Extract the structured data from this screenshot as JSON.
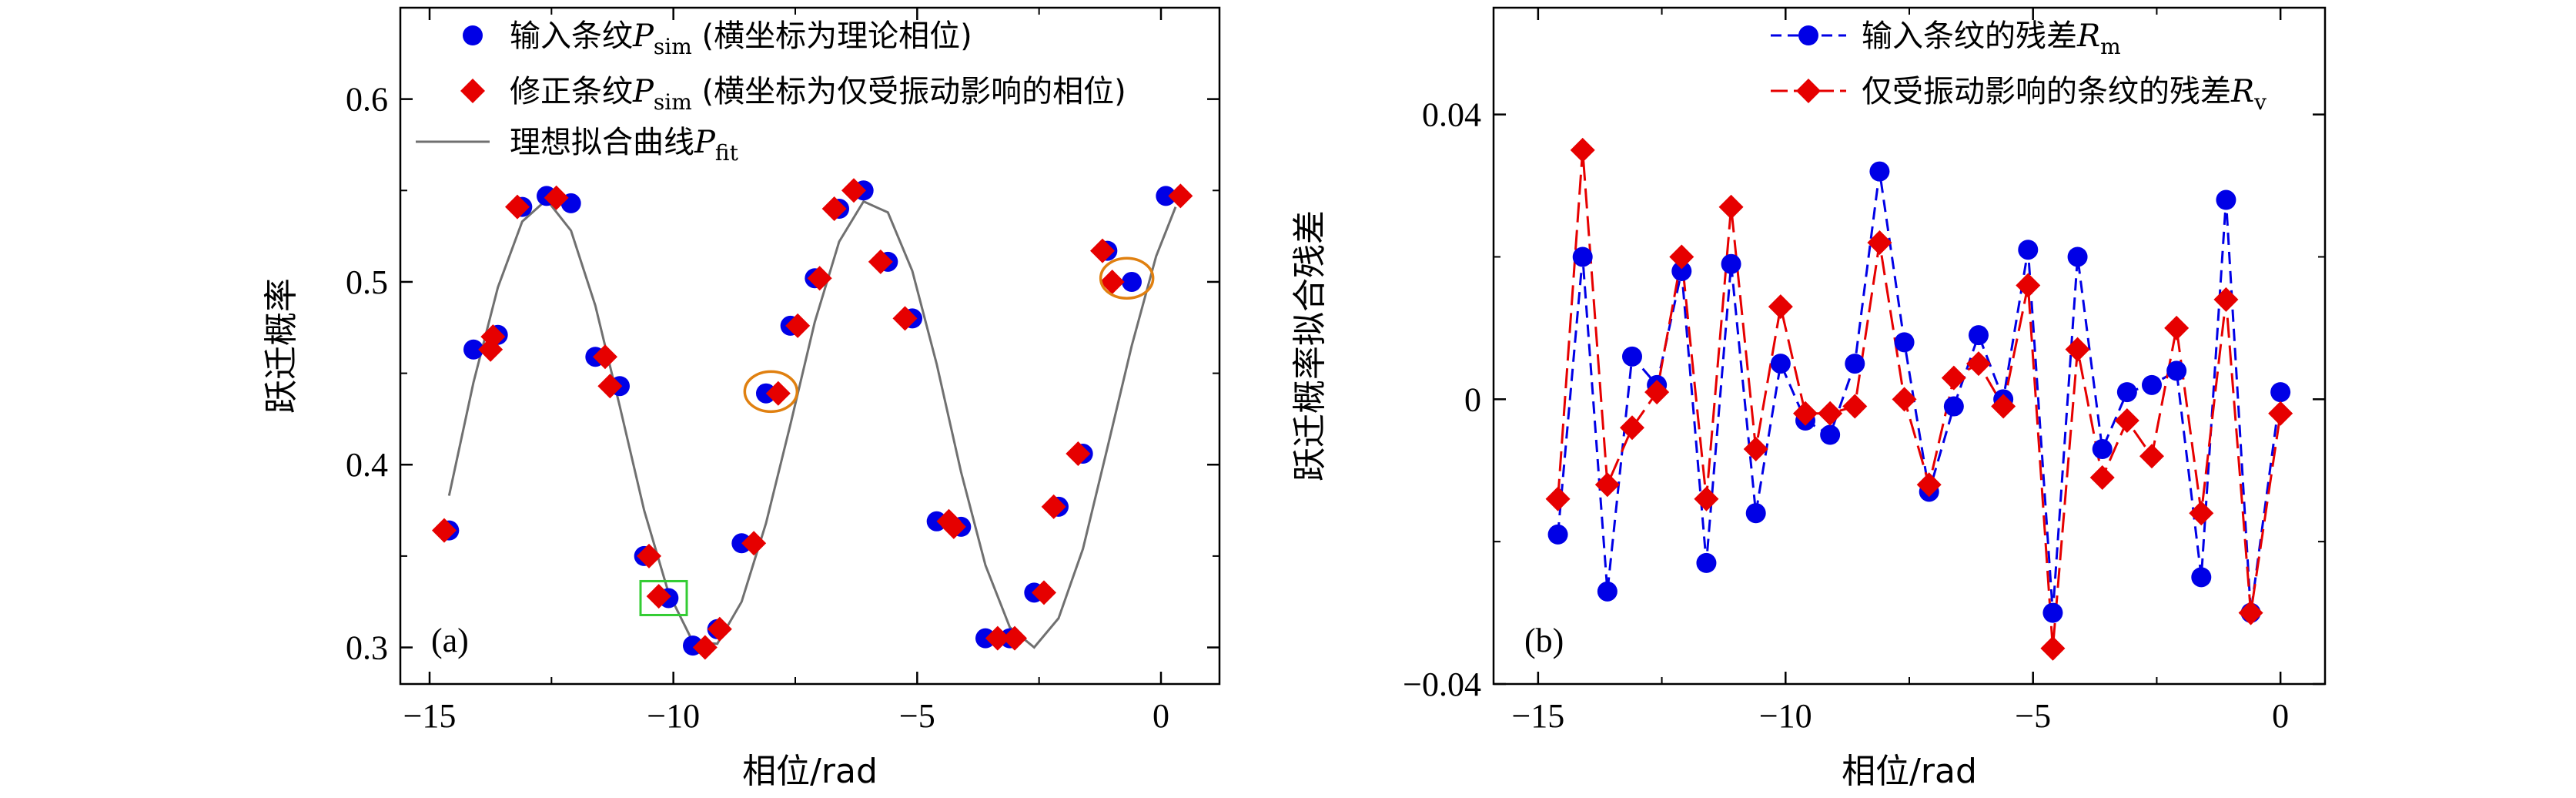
{
  "chart_data": [
    {
      "type": "scatter",
      "panel_label": "(a)",
      "xlabel": "相位/rad",
      "ylabel": "跃迁概率",
      "xlim": [
        -15.6,
        1.2
      ],
      "ylim": [
        0.28,
        0.65
      ],
      "xticks": [
        -15,
        -10,
        -5,
        0
      ],
      "xtick_labels": [
        "−15",
        "−10",
        "−5",
        "0"
      ],
      "yticks": [
        0.3,
        0.4,
        0.5,
        0.6
      ],
      "ytick_labels": [
        "0.3",
        "0.4",
        "0.5",
        "0.6"
      ],
      "grid": false,
      "legend_placement": "top-left",
      "series": [
        {
          "name": "输入条纹P_sim (横坐标为理论相位)",
          "legend_label": {
            "pre": "输入条纹",
            "sym": "P",
            "sub": "sim",
            "post": " (横坐标为理论相位)"
          },
          "marker": "circle",
          "color": "#0000e6",
          "points": [
            [
              -14.6,
              0.364
            ],
            [
              -14.1,
              0.463
            ],
            [
              -13.6,
              0.471
            ],
            [
              -13.1,
              0.541
            ],
            [
              -12.6,
              0.547
            ],
            [
              -12.1,
              0.543
            ],
            [
              -11.6,
              0.459
            ],
            [
              -11.1,
              0.443
            ],
            [
              -10.6,
              0.35
            ],
            [
              -10.1,
              0.327
            ],
            [
              -9.6,
              0.301
            ],
            [
              -9.1,
              0.31
            ],
            [
              -8.6,
              0.357
            ],
            [
              -8.1,
              0.439
            ],
            [
              -7.6,
              0.476
            ],
            [
              -7.1,
              0.502
            ],
            [
              -6.6,
              0.54
            ],
            [
              -6.1,
              0.55
            ],
            [
              -5.6,
              0.511
            ],
            [
              -5.1,
              0.48
            ],
            [
              -4.6,
              0.369
            ],
            [
              -4.1,
              0.366
            ],
            [
              -3.6,
              0.305
            ],
            [
              -3.1,
              0.305
            ],
            [
              -2.6,
              0.33
            ],
            [
              -2.1,
              0.377
            ],
            [
              -1.6,
              0.406
            ],
            [
              -1.1,
              0.517
            ],
            [
              -0.6,
              0.5
            ],
            [
              0.1,
              0.547
            ]
          ]
        },
        {
          "name": "修正条纹P_sim (横坐标为仅受振动影响的相位)",
          "legend_label": {
            "pre": "修正条纹",
            "sym": "P",
            "sub": "sim",
            "post": " (横坐标为仅受振动影响的相位)"
          },
          "marker": "diamond",
          "color": "#e60000",
          "points": [
            [
              -14.7,
              0.364
            ],
            [
              -13.75,
              0.463
            ],
            [
              -13.7,
              0.47
            ],
            [
              -13.2,
              0.541
            ],
            [
              -12.4,
              0.546
            ],
            [
              -11.4,
              0.459
            ],
            [
              -11.3,
              0.443
            ],
            [
              -10.5,
              0.35
            ],
            [
              -10.3,
              0.328
            ],
            [
              -9.35,
              0.3
            ],
            [
              -9.05,
              0.31
            ],
            [
              -8.35,
              0.357
            ],
            [
              -7.85,
              0.439
            ],
            [
              -7.45,
              0.476
            ],
            [
              -7.0,
              0.502
            ],
            [
              -6.7,
              0.54
            ],
            [
              -6.3,
              0.55
            ],
            [
              -5.75,
              0.511
            ],
            [
              -5.25,
              0.48
            ],
            [
              -4.35,
              0.369
            ],
            [
              -4.25,
              0.366
            ],
            [
              -3.35,
              0.305
            ],
            [
              -3.0,
              0.305
            ],
            [
              -2.4,
              0.33
            ],
            [
              -2.2,
              0.377
            ],
            [
              -1.7,
              0.406
            ],
            [
              -1.2,
              0.517
            ],
            [
              -1.0,
              0.5
            ],
            [
              0.4,
              0.547
            ]
          ]
        },
        {
          "name": "理想拟合曲线P_fit",
          "legend_label": {
            "pre": "理想拟合曲线",
            "sym": "P",
            "sub": "fit",
            "post": ""
          },
          "marker": "line",
          "color": "#707070",
          "points": [
            [
              -14.6,
              0.383
            ],
            [
              -14.1,
              0.445
            ],
            [
              -13.6,
              0.497
            ],
            [
              -13.1,
              0.533
            ],
            [
              -12.6,
              0.545
            ],
            [
              -12.1,
              0.528
            ],
            [
              -11.6,
              0.487
            ],
            [
              -11.1,
              0.432
            ],
            [
              -10.6,
              0.375
            ],
            [
              -10.1,
              0.33
            ],
            [
              -9.6,
              0.303
            ],
            [
              -9.1,
              0.302
            ],
            [
              -8.6,
              0.325
            ],
            [
              -8.1,
              0.368
            ],
            [
              -7.6,
              0.422
            ],
            [
              -7.1,
              0.478
            ],
            [
              -6.6,
              0.522
            ],
            [
              -6.1,
              0.544
            ],
            [
              -5.6,
              0.538
            ],
            [
              -5.1,
              0.506
            ],
            [
              -4.6,
              0.455
            ],
            [
              -4.1,
              0.396
            ],
            [
              -3.6,
              0.345
            ],
            [
              -3.1,
              0.311
            ],
            [
              -2.6,
              0.3
            ],
            [
              -2.1,
              0.316
            ],
            [
              -1.6,
              0.354
            ],
            [
              -1.1,
              0.409
            ],
            [
              -0.6,
              0.465
            ],
            [
              -0.1,
              0.514
            ],
            [
              0.3,
              0.541
            ]
          ]
        }
      ],
      "annotations": [
        {
          "shape": "ellipse",
          "color": "#e08010",
          "x": -8.0,
          "y": 0.44
        },
        {
          "shape": "ellipse",
          "color": "#e08010",
          "x": -0.7,
          "y": 0.502
        },
        {
          "shape": "rectangle",
          "color": "#33cc33",
          "x": -10.2,
          "y": 0.327
        }
      ]
    },
    {
      "type": "line",
      "panel_label": "(b)",
      "xlabel": "相位/rad",
      "ylabel": "跃迁概率拟合残差",
      "xlim": [
        -15.9,
        0.9
      ],
      "ylim": [
        -0.04,
        0.055
      ],
      "xticks": [
        -15,
        -10,
        -5,
        0
      ],
      "xtick_labels": [
        "−15",
        "−10",
        "−5",
        "0"
      ],
      "yticks": [
        -0.04,
        0,
        0.04
      ],
      "ytick_labels": [
        "−0.04",
        "0",
        "0.04"
      ],
      "grid": false,
      "legend_placement": "top-center",
      "series": [
        {
          "name": "输入条纹的残差R_m",
          "legend_label": {
            "pre": "输入条纹的残差",
            "sym": "R",
            "sub": "m",
            "post": ""
          },
          "marker": "circle",
          "color": "#0000e6",
          "x": [
            -14.6,
            -14.1,
            -13.6,
            -13.1,
            -12.6,
            -12.1,
            -11.6,
            -11.1,
            -10.6,
            -10.1,
            -9.6,
            -9.1,
            -8.6,
            -8.1,
            -7.6,
            -7.1,
            -6.6,
            -6.1,
            -5.6,
            -5.1,
            -4.6,
            -4.1,
            -3.6,
            -3.1,
            -2.6,
            -2.1,
            -1.6,
            -1.1,
            -0.6,
            0.0
          ],
          "values": [
            -0.019,
            0.02,
            -0.027,
            0.006,
            0.002,
            0.018,
            -0.023,
            0.019,
            -0.016,
            0.005,
            -0.003,
            -0.005,
            0.005,
            0.032,
            0.008,
            -0.013,
            -0.001,
            0.009,
            0.0,
            0.021,
            -0.03,
            0.02,
            -0.007,
            0.001,
            0.002,
            0.004,
            -0.025,
            0.028,
            -0.03,
            0.001
          ]
        },
        {
          "name": "仅受振动影响的条纹的残差R_v",
          "legend_label": {
            "pre": "仅受振动影响的条纹的残差",
            "sym": "R",
            "sub": "v",
            "post": ""
          },
          "marker": "diamond",
          "color": "#e60000",
          "x": [
            -14.6,
            -14.1,
            -13.6,
            -13.1,
            -12.6,
            -12.1,
            -11.6,
            -11.1,
            -10.6,
            -10.1,
            -9.6,
            -9.1,
            -8.6,
            -8.1,
            -7.6,
            -7.1,
            -6.6,
            -6.1,
            -5.6,
            -5.1,
            -4.6,
            -4.1,
            -3.6,
            -3.1,
            -2.6,
            -2.1,
            -1.6,
            -1.1,
            -0.6,
            0.0
          ],
          "values": [
            -0.014,
            0.035,
            -0.012,
            -0.004,
            0.001,
            0.02,
            -0.014,
            0.027,
            -0.007,
            0.013,
            -0.002,
            -0.002,
            -0.001,
            0.022,
            0.0,
            -0.012,
            0.003,
            0.005,
            -0.001,
            0.016,
            -0.035,
            0.007,
            -0.011,
            -0.003,
            -0.008,
            0.01,
            -0.016,
            0.014,
            -0.03,
            -0.002
          ]
        }
      ]
    }
  ]
}
